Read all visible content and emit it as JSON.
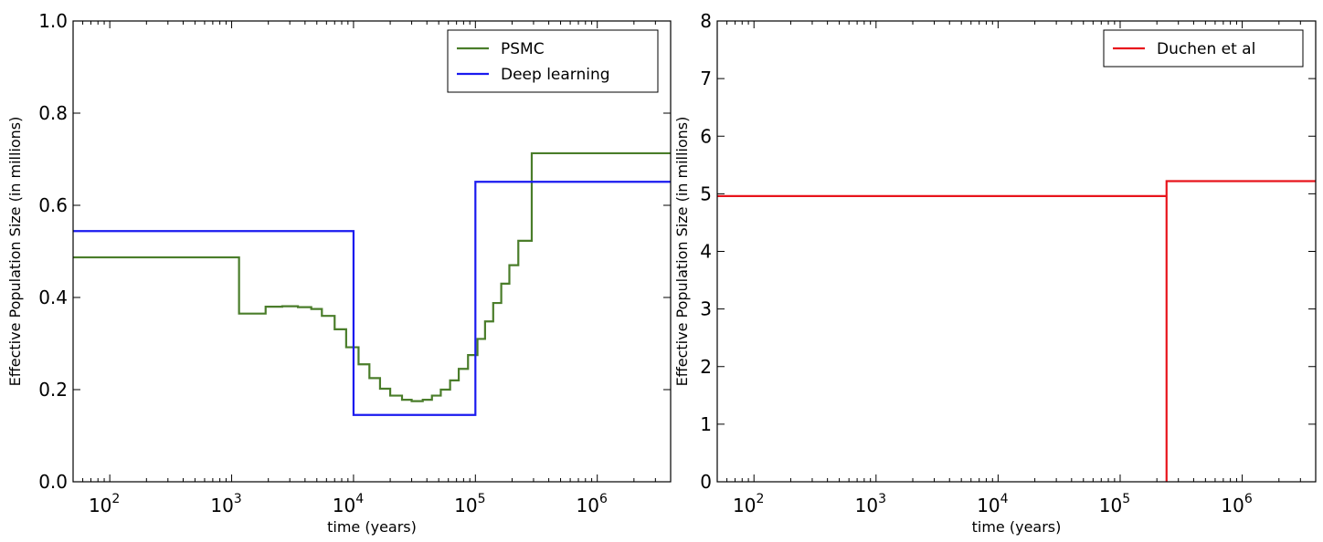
{
  "chart_data": [
    {
      "type": "line",
      "step": true,
      "xscale": "log",
      "xlabel": "time (years)",
      "ylabel": "Effective Population Size (in millions)",
      "xlim": [
        50,
        4000000
      ],
      "ylim": [
        0.0,
        1.0
      ],
      "xticks": [
        100,
        1000,
        10000,
        100000,
        1000000
      ],
      "xtick_labels": [
        {
          "base": "10",
          "exp": "2"
        },
        {
          "base": "10",
          "exp": "3"
        },
        {
          "base": "10",
          "exp": "4"
        },
        {
          "base": "10",
          "exp": "5"
        },
        {
          "base": "10",
          "exp": "6"
        }
      ],
      "yticks": [
        0.0,
        0.2,
        0.4,
        0.6,
        0.8,
        1.0
      ],
      "ytick_labels": [
        "0.0",
        "0.2",
        "0.4",
        "0.6",
        "0.8",
        "1.0"
      ],
      "legend_position": "top-right",
      "series": [
        {
          "name": "PSMC",
          "color": "#4a7d2a",
          "x": [
            50,
            1150,
            1150,
            1900,
            1900,
            2600,
            2600,
            3500,
            3500,
            4500,
            4500,
            5500,
            5500,
            7000,
            7000,
            8700,
            8700,
            11000,
            11000,
            13500,
            13500,
            16500,
            16500,
            20000,
            20000,
            25000,
            25000,
            30000,
            30000,
            37000,
            37000,
            44000,
            44000,
            52000,
            52000,
            62000,
            62000,
            73000,
            73000,
            87000,
            87000,
            104000,
            104000,
            120000,
            120000,
            140000,
            140000,
            163000,
            163000,
            190000,
            190000,
            225000,
            225000,
            290000,
            290000,
            4000000
          ],
          "y": [
            0.487,
            0.487,
            0.365,
            0.365,
            0.38,
            0.38,
            0.381,
            0.381,
            0.379,
            0.379,
            0.375,
            0.375,
            0.36,
            0.36,
            0.331,
            0.331,
            0.292,
            0.292,
            0.255,
            0.255,
            0.225,
            0.225,
            0.202,
            0.202,
            0.187,
            0.187,
            0.178,
            0.178,
            0.175,
            0.175,
            0.178,
            0.178,
            0.187,
            0.187,
            0.2,
            0.2,
            0.22,
            0.22,
            0.245,
            0.245,
            0.275,
            0.275,
            0.31,
            0.31,
            0.348,
            0.348,
            0.388,
            0.388,
            0.43,
            0.43,
            0.47,
            0.47,
            0.523,
            0.523,
            0.713,
            0.713
          ]
        },
        {
          "name": "Deep learning",
          "color": "#1a1aef",
          "x": [
            50,
            10000,
            10000,
            100000,
            100000,
            4000000
          ],
          "y": [
            0.544,
            0.544,
            0.145,
            0.145,
            0.651,
            0.651
          ]
        }
      ]
    },
    {
      "type": "line",
      "step": true,
      "xscale": "log",
      "xlabel": "time (years)",
      "ylabel": "Effective Population Size (in millions)",
      "xlim": [
        50,
        4000000
      ],
      "ylim": [
        0,
        8
      ],
      "xticks": [
        100,
        1000,
        10000,
        100000,
        1000000
      ],
      "xtick_labels": [
        {
          "base": "10",
          "exp": "2"
        },
        {
          "base": "10",
          "exp": "3"
        },
        {
          "base": "10",
          "exp": "4"
        },
        {
          "base": "10",
          "exp": "5"
        },
        {
          "base": "10",
          "exp": "6"
        }
      ],
      "yticks": [
        0,
        1,
        2,
        3,
        4,
        5,
        6,
        7,
        8
      ],
      "ytick_labels": [
        "0",
        "1",
        "2",
        "3",
        "4",
        "5",
        "6",
        "7",
        "8"
      ],
      "legend_position": "top-right",
      "series": [
        {
          "name": "Duchen et al",
          "color": "#e8141c",
          "x": [
            50,
            240000,
            240000,
            240000,
            4000000
          ],
          "y": [
            4.96,
            4.96,
            0,
            5.22,
            5.22
          ]
        }
      ]
    }
  ]
}
